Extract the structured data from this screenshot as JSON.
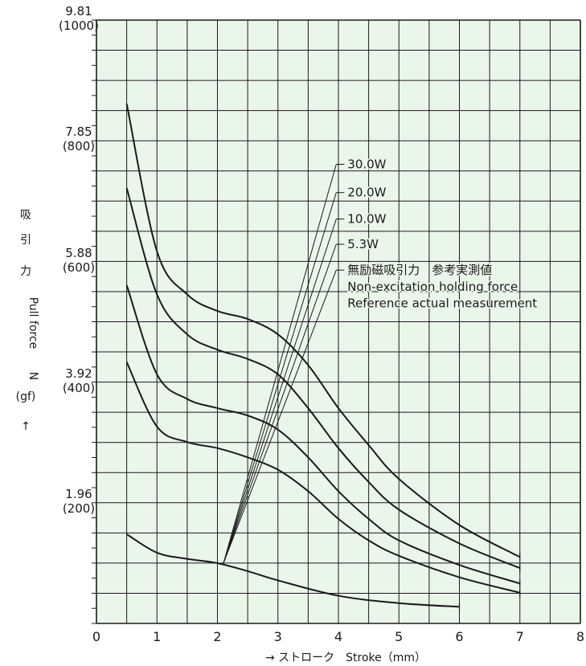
{
  "chart_data": {
    "type": "line",
    "xlabel": "→  ストローク　Stroke（mm）",
    "ylabel": [
      "吸",
      "引",
      "力",
      "Pull force",
      "N",
      "(gf)",
      "↑"
    ],
    "xlim": [
      0,
      8
    ],
    "ylim": [
      0,
      9.81
    ],
    "x_ticks": [
      0,
      1,
      2,
      3,
      4,
      5,
      6,
      7,
      8
    ],
    "y_ticks": [
      {
        "value": 1.96,
        "label": "1.96",
        "sublabel": "(200)"
      },
      {
        "value": 3.92,
        "label": "3.92",
        "sublabel": "(400)"
      },
      {
        "value": 5.88,
        "label": "5.88",
        "sublabel": "(600)"
      },
      {
        "value": 7.85,
        "label": "7.85",
        "sublabel": "(800)"
      },
      {
        "value": 9.81,
        "label": "9.81",
        "sublabel": "(1000)"
      }
    ],
    "grid": true,
    "background_color": "#eaf6ea",
    "line_color": "#1a1a1a",
    "series": [
      {
        "name": "30.0W",
        "x": [
          0.5,
          1,
          1.5,
          2,
          2.5,
          3,
          3.5,
          4,
          4.5,
          5,
          6,
          7
        ],
        "y": [
          8.45,
          6.05,
          5.35,
          5.08,
          4.95,
          4.7,
          4.2,
          3.5,
          2.9,
          2.35,
          1.6,
          1.08
        ]
      },
      {
        "name": "20.0W",
        "x": [
          0.5,
          1,
          1.5,
          2,
          2.5,
          3,
          3.5,
          4,
          4.5,
          5,
          6,
          7
        ],
        "y": [
          7.08,
          5.35,
          4.7,
          4.45,
          4.3,
          4.05,
          3.5,
          2.85,
          2.3,
          1.85,
          1.3,
          0.9
        ]
      },
      {
        "name": "10.0W",
        "x": [
          0.5,
          1,
          1.5,
          2,
          2.5,
          3,
          3.5,
          4,
          4.5,
          5,
          6,
          7
        ],
        "y": [
          5.5,
          4.05,
          3.65,
          3.5,
          3.38,
          3.15,
          2.7,
          2.15,
          1.7,
          1.35,
          0.95,
          0.65
        ]
      },
      {
        "name": "5.3W",
        "x": [
          0.5,
          1,
          1.5,
          2,
          2.5,
          3,
          3.5,
          4,
          4.5,
          5,
          6,
          7
        ],
        "y": [
          4.25,
          3.2,
          2.95,
          2.85,
          2.7,
          2.5,
          2.15,
          1.7,
          1.35,
          1.1,
          0.75,
          0.5
        ]
      },
      {
        "name": "無励磁吸引力　参考実測値",
        "x": [
          0.5,
          1,
          1.5,
          2,
          2.5,
          3,
          4,
          5,
          6
        ],
        "y": [
          1.45,
          1.15,
          1.05,
          0.98,
          0.85,
          0.7,
          0.45,
          0.33,
          0.27
        ]
      }
    ],
    "annotations": [
      {
        "text": "30.0W",
        "x": 4.15,
        "y": 7.4,
        "target": {
          "x": 2.1,
          "y": 0.98
        }
      },
      {
        "text": "20.0W",
        "x": 4.15,
        "y": 6.94,
        "target": {
          "x": 2.1,
          "y": 0.98
        }
      },
      {
        "text": "10.0W",
        "x": 4.15,
        "y": 6.51,
        "target": {
          "x": 2.1,
          "y": 0.98
        }
      },
      {
        "text": "5.3W",
        "x": 4.15,
        "y": 6.1,
        "target": {
          "x": 2.1,
          "y": 0.98
        }
      },
      {
        "text": "無励磁吸引力　参考実測値",
        "x": 4.15,
        "y": 5.68,
        "target": {
          "x": 2.1,
          "y": 0.98
        }
      },
      {
        "text": "Non-excitation holding force",
        "x": 4.15,
        "y": 5.41
      },
      {
        "text": "Reference actual measurement",
        "x": 4.15,
        "y": 5.14
      }
    ]
  }
}
